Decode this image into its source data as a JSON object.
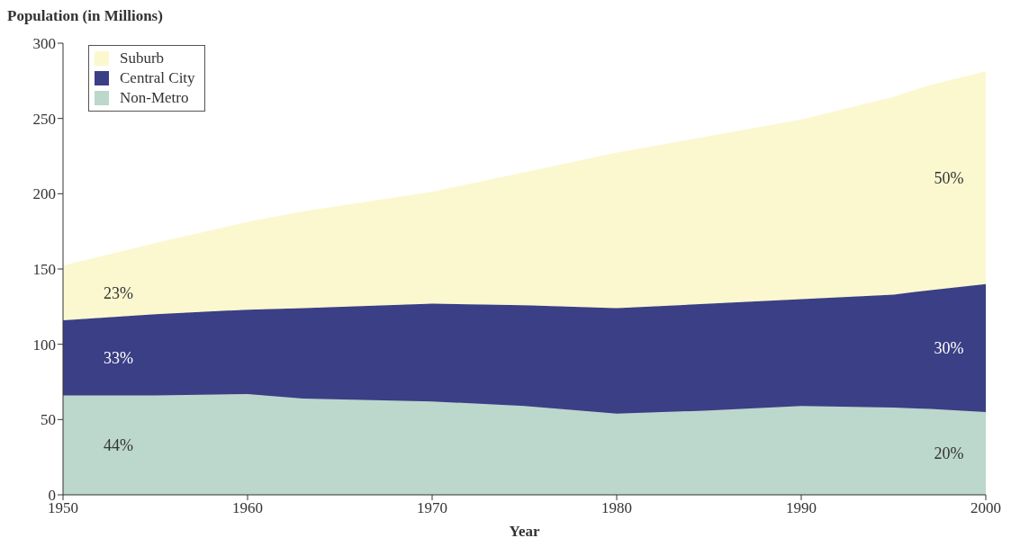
{
  "chart_data": {
    "type": "area",
    "stacked": true,
    "ylabel": "Population (in Millions)",
    "xlabel": "Year",
    "x": [
      1950,
      1955,
      1960,
      1963,
      1970,
      1975,
      1980,
      1985,
      1990,
      1995,
      1997,
      2000
    ],
    "series": [
      {
        "name": "Non-Metro",
        "color": "#bcd7cc",
        "values": [
          66,
          66,
          67,
          64,
          62,
          59,
          54,
          56,
          59,
          58,
          57,
          55
        ]
      },
      {
        "name": "Central City",
        "color": "#3b3f86",
        "values": [
          50,
          54,
          56,
          60,
          65,
          67,
          70,
          71,
          71,
          75,
          79,
          85
        ]
      },
      {
        "name": "Suburb",
        "color": "#fbf8d0",
        "values": [
          36,
          47,
          58,
          64,
          74,
          88,
          103,
          111,
          119,
          131,
          136,
          141
        ]
      }
    ],
    "xlim": [
      1950,
      2000
    ],
    "xticks": [
      1950,
      1960,
      1970,
      1980,
      1990,
      2000
    ],
    "ylim": [
      0,
      300
    ],
    "yticks": [
      0,
      50,
      100,
      150,
      200,
      250,
      300
    ],
    "grid": false,
    "legend": "top left",
    "annotations": [
      "23%",
      "33%",
      "44%",
      "50%",
      "30%",
      "20%"
    ]
  }
}
